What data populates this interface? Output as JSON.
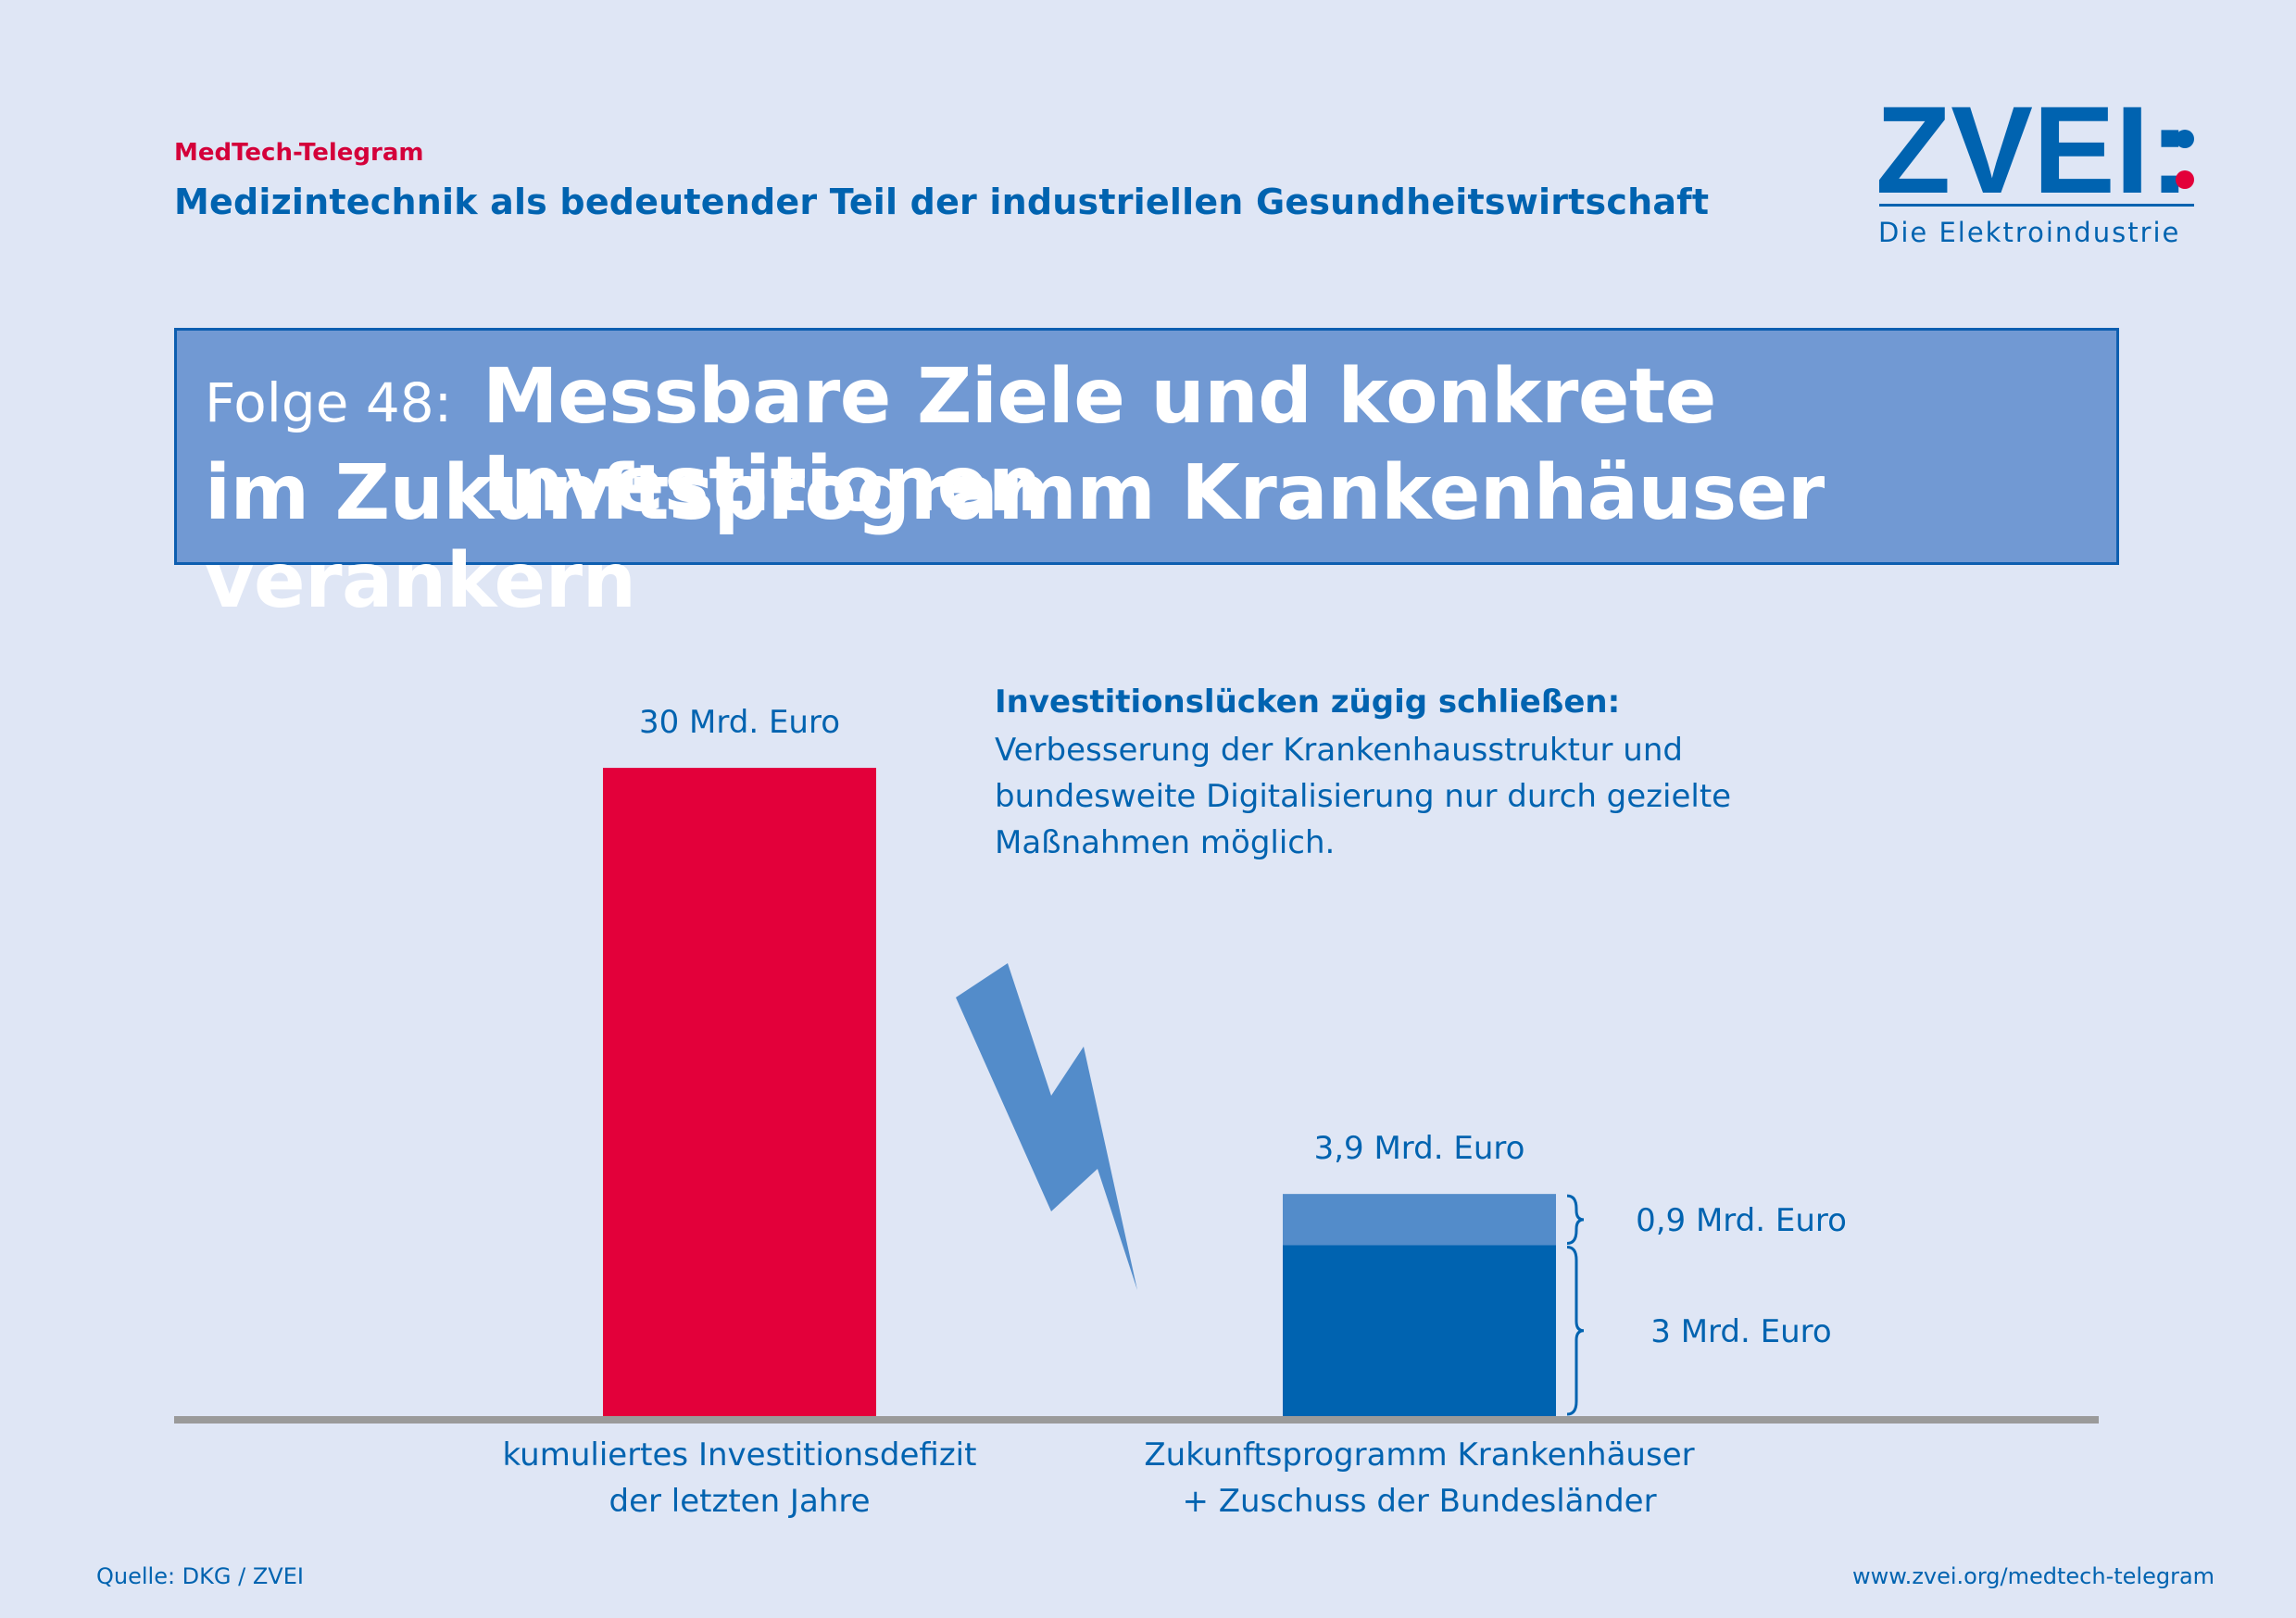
{
  "header": {
    "kicker": "MedTech-Telegram",
    "subtitle": "Medizintechnik als bedeutender Teil der industriellen Gesundheitswirtschaft"
  },
  "logo": {
    "wordmark": "ZVEI:",
    "tagline": "Die Elektroindustrie"
  },
  "title": {
    "episode": "Folge 48:",
    "line1": "Messbare Ziele und konkrete Investitionen",
    "line2": "im Zukunftsprogramm Krankenhäuser verankern"
  },
  "note": {
    "heading": "Investitionslücken zügig schließen:",
    "lines": [
      "Verbesserung der Krankenhausstruktur und",
      "bundesweite Digitalisierung nur durch gezielte",
      "Maßnahmen möglich."
    ]
  },
  "chart_data": {
    "type": "bar",
    "unit": "Mrd. Euro",
    "categories": [
      [
        "kumuliertes Investitionsdefizit",
        "der letzten Jahre"
      ],
      [
        "Zukunftsprogramm Krankenhäuser",
        "+ Zuschuss der Bundesländer"
      ]
    ],
    "bars": [
      {
        "total": 30,
        "total_label": "30 Mrd. Euro",
        "segments": [
          {
            "value": 30,
            "label": "",
            "color": "#e3003a"
          }
        ]
      },
      {
        "total": 3.9,
        "total_label": "3,9 Mrd. Euro",
        "segments": [
          {
            "value": 3,
            "label": "3 Mrd. Euro",
            "color": "#0063b0"
          },
          {
            "value": 0.9,
            "label": "0,9 Mrd. Euro",
            "color": "#538cca"
          }
        ]
      }
    ],
    "colors": {
      "deficit": "#e3003a",
      "program": "#0063b0",
      "supplement": "#538cca",
      "baseline": "#9a9a9a",
      "lightning": "#538cca"
    }
  },
  "footer": {
    "source": "Quelle: DKG / ZVEI",
    "website": "www.zvei.org/medtech-telegram"
  },
  "colors": {
    "background": "#dfe6f5",
    "brand_blue": "#0063b0",
    "brand_red": "#d4003a",
    "title_box": "#7199d3"
  }
}
